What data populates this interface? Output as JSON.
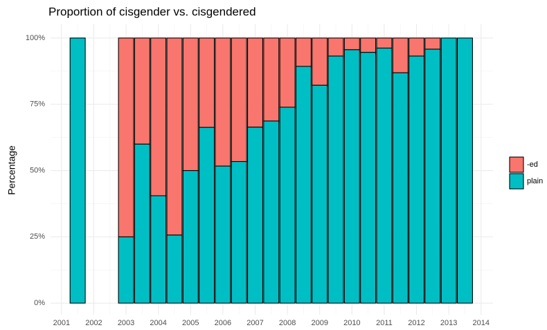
{
  "chart_data": {
    "type": "stacked_bar",
    "title": "Proportion of cisgender vs. cisgendered",
    "y_label": "Percentage",
    "x": [
      2001.5,
      2003.0,
      2003.5,
      2004.0,
      2004.5,
      2005.0,
      2005.5,
      2006.0,
      2006.5,
      2007.0,
      2007.5,
      2008.0,
      2008.5,
      2009.0,
      2009.5,
      2010.0,
      2010.5,
      2011.0,
      2011.5,
      2012.0,
      2012.5,
      2013.0,
      2013.5
    ],
    "series": [
      {
        "name": "-ed",
        "color": "#f8766d",
        "values": [
          0,
          75,
          40,
          59.5,
          74.3,
          50,
          33.7,
          48.3,
          46.6,
          33.6,
          31.3,
          26.1,
          10.7,
          17.8,
          6.8,
          4.4,
          5.4,
          3.8,
          13.1,
          6.8,
          4.2,
          0,
          0
        ]
      },
      {
        "name": "plain",
        "color": "#00bfc4",
        "values": [
          100,
          25,
          60,
          40.5,
          25.7,
          50,
          66.3,
          51.7,
          53.4,
          66.4,
          68.7,
          73.9,
          89.3,
          82.2,
          93.2,
          95.6,
          94.6,
          96.2,
          86.9,
          93.2,
          95.8,
          100,
          100
        ]
      }
    ],
    "xlim": [
      2000.66,
      2014.37
    ],
    "xticks": [
      2001,
      2002,
      2003,
      2004,
      2005,
      2006,
      2007,
      2008,
      2009,
      2010,
      2011,
      2012,
      2013,
      2014
    ],
    "ylim": [
      -4.4,
      105.2
    ],
    "yticks": [
      {
        "value": 0,
        "label": "0%"
      },
      {
        "value": 25,
        "label": "25%"
      },
      {
        "value": 50,
        "label": "50%"
      },
      {
        "value": 75,
        "label": "75%"
      },
      {
        "value": 100,
        "label": "100%"
      }
    ],
    "grid": true,
    "legend": "right"
  }
}
